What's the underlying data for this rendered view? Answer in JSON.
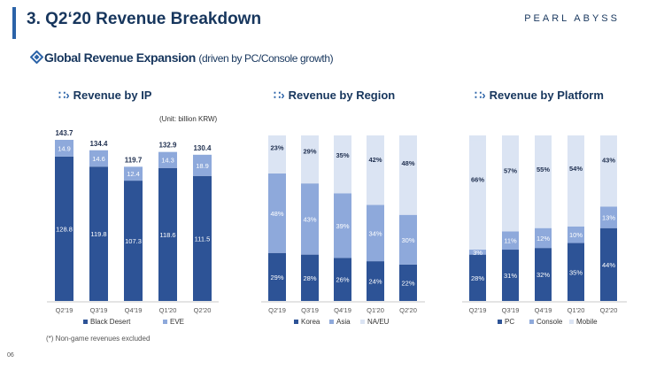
{
  "header": {
    "title": "3. Q2‘20 Revenue Breakdown",
    "logo": "PEARL ABYSS"
  },
  "subtitle": {
    "main": "Global Revenue Expansion",
    "note": "(driven by PC/Console growth)"
  },
  "sections": {
    "ip": "Revenue by IP",
    "region": "Revenue by Region",
    "platform": "Revenue by Platform"
  },
  "unit_note": "(Unit: billion KRW)",
  "footnote": "(*) Non-game revenues excluded",
  "page_number": "06",
  "colors": {
    "dark": "#2d5396",
    "mid": "#8ea9db",
    "light": "#dbe4f3",
    "title": "#17365d"
  },
  "chart_data": [
    {
      "type": "bar",
      "stacked": true,
      "title": "Revenue by IP",
      "categories": [
        "Q2'19",
        "Q3'19",
        "Q4'19",
        "Q1'20",
        "Q2'20"
      ],
      "series": [
        {
          "name": "Black Desert",
          "values": [
            128.8,
            119.8,
            107.3,
            118.6,
            111.5
          ]
        },
        {
          "name": "EVE",
          "values": [
            14.9,
            14.6,
            12.4,
            14.3,
            18.9
          ]
        }
      ],
      "totals": [
        143.7,
        134.4,
        119.7,
        132.9,
        130.4
      ],
      "ylim": [
        0,
        150
      ],
      "legend": "bottom"
    },
    {
      "type": "bar",
      "stacked": true,
      "percent": true,
      "title": "Revenue by Region",
      "categories": [
        "Q2'19",
        "Q3'19",
        "Q4'19",
        "Q1'20",
        "Q2'20"
      ],
      "series": [
        {
          "name": "Korea",
          "values": [
            29,
            28,
            26,
            24,
            22
          ]
        },
        {
          "name": "Asia",
          "values": [
            48,
            43,
            39,
            34,
            30
          ]
        },
        {
          "name": "NA/EU",
          "values": [
            23,
            29,
            35,
            42,
            48
          ]
        }
      ],
      "legend": "bottom"
    },
    {
      "type": "bar",
      "stacked": true,
      "percent": true,
      "title": "Revenue by Platform",
      "categories": [
        "Q2'19",
        "Q3'19",
        "Q4'19",
        "Q1'20",
        "Q2'20"
      ],
      "series": [
        {
          "name": "PC",
          "values": [
            28,
            31,
            32,
            35,
            44
          ]
        },
        {
          "name": "Console",
          "values": [
            3,
            11,
            12,
            10,
            13
          ]
        },
        {
          "name": "Mobile",
          "values": [
            66,
            57,
            55,
            54,
            43
          ]
        }
      ],
      "legend": "bottom"
    }
  ]
}
